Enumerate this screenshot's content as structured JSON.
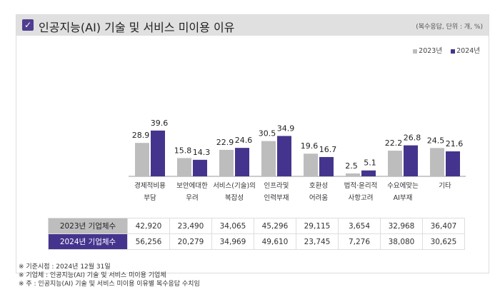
{
  "header": {
    "title": "인공지능(AI) 기술 및 서비스 미이용 이유",
    "unit": "(복수응답, 단위 : 개, %)",
    "icon": "checkbox-icon"
  },
  "chart_data": {
    "type": "bar",
    "categories": [
      [
        "경제적비용",
        "부담"
      ],
      [
        "보안에대한",
        "우려"
      ],
      [
        "서비스(기술)의",
        "복잡성"
      ],
      [
        "인프라및",
        "인력부재"
      ],
      [
        "호환성",
        "어려움"
      ],
      [
        "법적·윤리적",
        "사항고려"
      ],
      [
        "수요에맞는",
        "AI부재"
      ],
      [
        "기타"
      ]
    ],
    "series": [
      {
        "name": "2023년",
        "color": "#bdbdbd",
        "values": [
          28.9,
          15.8,
          22.9,
          30.5,
          19.6,
          2.5,
          22.2,
          24.5
        ]
      },
      {
        "name": "2024년",
        "color": "#45348e",
        "values": [
          39.6,
          14.3,
          24.6,
          34.9,
          16.7,
          5.1,
          26.8,
          21.6
        ]
      }
    ],
    "legend": "top-right",
    "grid": false
  },
  "table": {
    "rows": [
      {
        "label": "2023년 기업체수",
        "values": [
          "42,920",
          "23,490",
          "34,065",
          "45,296",
          "29,115",
          "3,654",
          "32,968",
          "36,407"
        ]
      },
      {
        "label": "2024년 기업체수",
        "values": [
          "56,256",
          "20,279",
          "34,969",
          "49,610",
          "23,745",
          "7,276",
          "38,080",
          "30,625"
        ]
      }
    ]
  },
  "notes": [
    "※ 기준시점 : 2024년 12월 31일",
    "※ 기업체 : 인공지능(AI) 기술 및 서비스 미이용 기업체",
    "※ 주 : 인공지능(AI) 기술 및 서비스 미이용 이유별 복수응답 수치임"
  ]
}
